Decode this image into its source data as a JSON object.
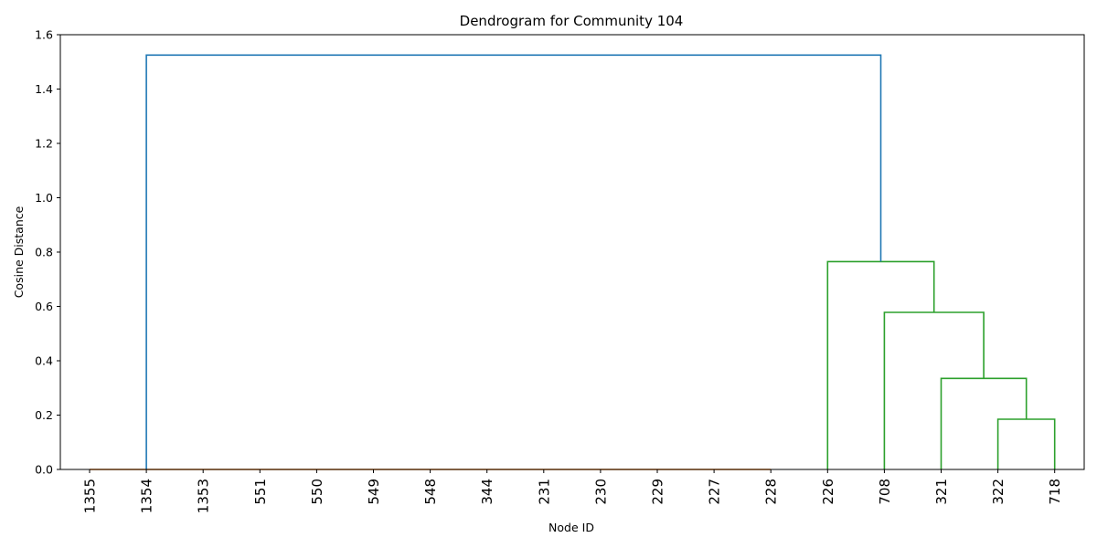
{
  "chart_data": {
    "type": "dendrogram",
    "title": "Dendrogram for Community 104",
    "xlabel": "Node ID",
    "ylabel": "Cosine Distance",
    "ylim": [
      0,
      1.6
    ],
    "yticks": [
      "0.0",
      "0.2",
      "0.4",
      "0.6",
      "0.8",
      "1.0",
      "1.2",
      "1.4",
      "1.6"
    ],
    "leaves": [
      "1355",
      "1354",
      "1353",
      "551",
      "550",
      "549",
      "548",
      "344",
      "231",
      "230",
      "229",
      "227",
      "228",
      "226",
      "708",
      "321",
      "322",
      "718"
    ],
    "colors": {
      "orange": "#ff7f0e",
      "green": "#2ca02c",
      "blue": "#1f77b4"
    },
    "links": [
      {
        "name": "link-orange-zero",
        "x": [
          0,
          0,
          12,
          12
        ],
        "y": [
          0,
          0,
          0,
          0
        ],
        "color": "orange"
      },
      {
        "name": "link-322-718",
        "x": [
          16,
          16,
          17,
          17
        ],
        "y": [
          0,
          0.185,
          0.185,
          0
        ],
        "color": "green"
      },
      {
        "name": "link-321-cluster",
        "x": [
          15,
          15,
          16.5,
          16.5
        ],
        "y": [
          0,
          0.335,
          0.335,
          0.185
        ],
        "color": "green"
      },
      {
        "name": "link-708-cluster",
        "x": [
          14,
          14,
          15.75,
          15.75
        ],
        "y": [
          0,
          0.578,
          0.578,
          0.335
        ],
        "color": "green"
      },
      {
        "name": "link-226-cluster",
        "x": [
          13,
          13,
          14.875,
          14.875
        ],
        "y": [
          0,
          0.765,
          0.765,
          0.578
        ],
        "color": "green"
      },
      {
        "name": "link-root",
        "x": [
          1,
          1,
          13.9375,
          13.9375
        ],
        "y": [
          0,
          1.525,
          1.525,
          0.765
        ],
        "color": "blue"
      }
    ]
  }
}
